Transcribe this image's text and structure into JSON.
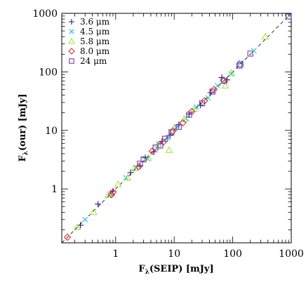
{
  "chart_data": {
    "type": "scatter",
    "xlabel_main": "F",
    "xlabel_sub": "λ",
    "xlabel_rest": "(SEIP) [mJy]",
    "ylabel_main": "F",
    "ylabel_sub": "λ",
    "ylabel_rest": "(our) [mJy]",
    "xscale": "log",
    "yscale": "log",
    "xlim": [
      0.12,
      1000
    ],
    "ylim": [
      0.12,
      1000
    ],
    "x_ticks": [
      1,
      10,
      100,
      1000
    ],
    "x_tick_labels": [
      "1",
      "10",
      "100",
      "1000"
    ],
    "y_ticks": [
      1,
      10,
      100,
      1000
    ],
    "y_tick_labels": [
      "1",
      "10",
      "100",
      "1000"
    ],
    "reference_line": "y = x (dashed)",
    "legend_placement": "top-left",
    "series": [
      {
        "name": "3.6 μm",
        "marker": "plus",
        "color": "#2a1a7a",
        "points": [
          [
            0.25,
            0.24
          ],
          [
            0.5,
            0.55
          ],
          [
            0.9,
            0.92
          ],
          [
            1.8,
            1.9
          ],
          [
            2.6,
            2.5
          ],
          [
            3.2,
            3.4
          ],
          [
            4.5,
            4.3
          ],
          [
            6.2,
            6.5
          ],
          [
            8.5,
            8.2
          ],
          [
            12,
            12.5
          ],
          [
            18,
            19
          ],
          [
            28,
            27
          ],
          [
            42,
            44
          ],
          [
            65,
            80
          ],
          [
            80,
            73
          ]
        ]
      },
      {
        "name": "4.5 μm",
        "marker": "cross",
        "color": "#22c6d8",
        "points": [
          [
            0.3,
            0.3
          ],
          [
            0.8,
            0.82
          ],
          [
            1.5,
            1.55
          ],
          [
            2.2,
            2.3
          ],
          [
            3.5,
            3.3
          ],
          [
            5.5,
            5.8
          ],
          [
            7.8,
            7.5
          ],
          [
            11,
            11.5
          ],
          [
            16,
            16
          ],
          [
            24,
            25
          ],
          [
            38,
            36
          ],
          [
            55,
            58
          ],
          [
            95,
            92
          ],
          [
            140,
            145
          ],
          [
            230,
            230
          ]
        ]
      },
      {
        "name": "5.8 μm",
        "marker": "triangle",
        "color": "#a6e34a",
        "points": [
          [
            0.22,
            0.22
          ],
          [
            0.42,
            0.4
          ],
          [
            0.75,
            0.78
          ],
          [
            1.1,
            1.2
          ],
          [
            1.6,
            1.55
          ],
          [
            2.1,
            2.25
          ],
          [
            3.6,
            3.4
          ],
          [
            5.2,
            5.7
          ],
          [
            8.2,
            4.6
          ],
          [
            10,
            10.8
          ],
          [
            15,
            15.5
          ],
          [
            22,
            23
          ],
          [
            75,
            58
          ],
          [
            95,
            96
          ],
          [
            360,
            400
          ]
        ]
      },
      {
        "name": "8.0 μm",
        "marker": "diamond",
        "color": "#e03030",
        "points": [
          [
            0.15,
            0.15
          ],
          [
            0.85,
            0.8
          ],
          [
            0.9,
            0.88
          ],
          [
            2.5,
            2.4
          ],
          [
            4.2,
            4.4
          ],
          [
            6.5,
            6.3
          ],
          [
            9.5,
            9.8
          ],
          [
            14,
            13.5
          ],
          [
            20,
            21
          ],
          [
            33,
            32
          ],
          [
            48,
            50
          ],
          [
            70,
            72
          ]
        ]
      },
      {
        "name": "24 μm",
        "marker": "square",
        "color": "#7a3aa8",
        "points": [
          [
            2.6,
            2.7
          ],
          [
            3.0,
            3.2
          ],
          [
            4.8,
            5.1
          ],
          [
            5.8,
            5.5
          ],
          [
            7.0,
            7.2
          ],
          [
            9.0,
            9.3
          ],
          [
            12,
            11.5
          ],
          [
            18,
            18.5
          ],
          [
            30,
            29
          ],
          [
            45,
            46
          ],
          [
            70,
            70
          ],
          [
            130,
            128
          ],
          [
            135,
            135
          ],
          [
            200,
            205
          ],
          [
            900,
            880
          ]
        ]
      }
    ]
  }
}
